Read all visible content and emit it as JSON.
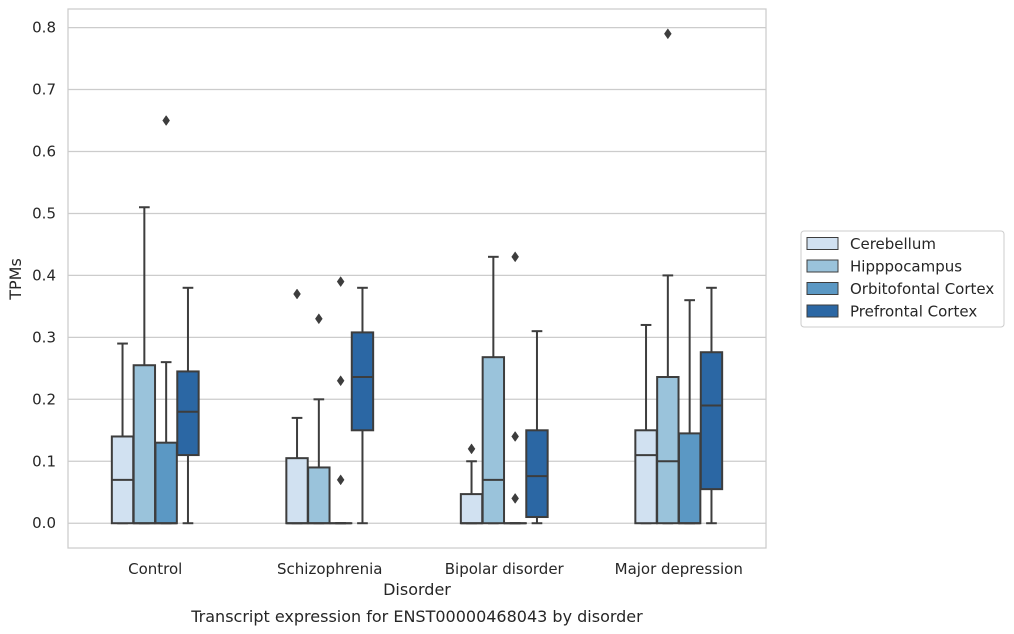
{
  "chart_data": {
    "type": "box",
    "caption": "Transcript expression for ENST00000468043 by disorder",
    "xlabel": "Disorder",
    "ylabel": "TPMs",
    "ylim": [
      -0.04,
      0.83
    ],
    "yticks": [
      0.0,
      0.1,
      0.2,
      0.3,
      0.4,
      0.5,
      0.6,
      0.7,
      0.8
    ],
    "ytick_labels": [
      "0.0",
      "0.1",
      "0.2",
      "0.3",
      "0.4",
      "0.5",
      "0.6",
      "0.7",
      "0.8"
    ],
    "grid": true,
    "legend_position": "right",
    "categories": [
      "Control",
      "Schizophrenia",
      "Bipolar disorder",
      "Major depression"
    ],
    "series": [
      {
        "name": "Cerebellum",
        "color": "#d1e1f1",
        "boxes": [
          {
            "q1": 0.0,
            "median": 0.07,
            "q3": 0.14,
            "whisker_low": 0.0,
            "whisker_high": 0.29,
            "outliers": []
          },
          {
            "q1": 0.0,
            "median": 0.0,
            "q3": 0.105,
            "whisker_low": 0.0,
            "whisker_high": 0.17,
            "outliers": [
              0.37
            ]
          },
          {
            "q1": 0.0,
            "median": 0.0,
            "q3": 0.047,
            "whisker_low": 0.0,
            "whisker_high": 0.1,
            "outliers": [
              0.12
            ]
          },
          {
            "q1": 0.0,
            "median": 0.11,
            "q3": 0.15,
            "whisker_low": 0.0,
            "whisker_high": 0.32,
            "outliers": []
          }
        ]
      },
      {
        "name": "Hipppocampus",
        "color": "#9ac3db",
        "boxes": [
          {
            "q1": 0.0,
            "median": 0.0,
            "q3": 0.255,
            "whisker_low": 0.0,
            "whisker_high": 0.51,
            "outliers": []
          },
          {
            "q1": 0.0,
            "median": 0.0,
            "q3": 0.09,
            "whisker_low": 0.0,
            "whisker_high": 0.2,
            "outliers": [
              0.33
            ]
          },
          {
            "q1": 0.0,
            "median": 0.07,
            "q3": 0.268,
            "whisker_low": 0.0,
            "whisker_high": 0.43,
            "outliers": []
          },
          {
            "q1": 0.0,
            "median": 0.1,
            "q3": 0.236,
            "whisker_low": 0.0,
            "whisker_high": 0.4,
            "outliers": [
              0.79
            ]
          }
        ]
      },
      {
        "name": "Orbitofontal Cortex",
        "color": "#5b98c4",
        "boxes": [
          {
            "q1": 0.0,
            "median": 0.0,
            "q3": 0.13,
            "whisker_low": 0.0,
            "whisker_high": 0.26,
            "outliers": [
              0.65
            ]
          },
          {
            "q1": 0.0,
            "median": 0.0,
            "q3": 0.0,
            "whisker_low": 0.0,
            "whisker_high": 0.0,
            "outliers": [
              0.07,
              0.23,
              0.39
            ]
          },
          {
            "q1": 0.0,
            "median": 0.0,
            "q3": 0.0,
            "whisker_low": 0.0,
            "whisker_high": 0.0,
            "outliers": [
              0.04,
              0.14,
              0.43
            ]
          },
          {
            "q1": 0.0,
            "median": 0.0,
            "q3": 0.145,
            "whisker_low": 0.0,
            "whisker_high": 0.36,
            "outliers": []
          }
        ]
      },
      {
        "name": "Prefrontal Cortex",
        "color": "#2b67a4",
        "boxes": [
          {
            "q1": 0.11,
            "median": 0.18,
            "q3": 0.245,
            "whisker_low": 0.0,
            "whisker_high": 0.38,
            "outliers": []
          },
          {
            "q1": 0.15,
            "median": 0.236,
            "q3": 0.308,
            "whisker_low": 0.0,
            "whisker_high": 0.38,
            "outliers": []
          },
          {
            "q1": 0.01,
            "median": 0.076,
            "q3": 0.15,
            "whisker_low": 0.0,
            "whisker_high": 0.31,
            "outliers": []
          },
          {
            "q1": 0.055,
            "median": 0.19,
            "q3": 0.276,
            "whisker_low": 0.0,
            "whisker_high": 0.38,
            "outliers": []
          }
        ]
      }
    ]
  }
}
